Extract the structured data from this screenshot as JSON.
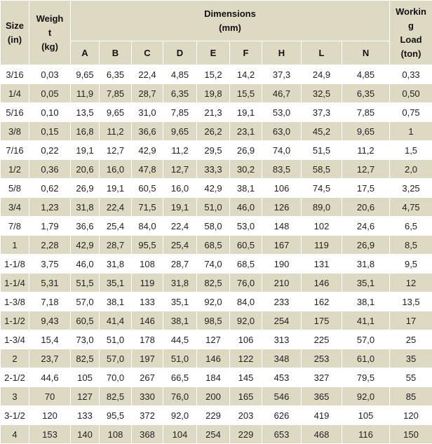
{
  "headers": {
    "size": [
      "Size",
      "(in)"
    ],
    "weight": [
      "Weigh",
      "t",
      "(kg)"
    ],
    "dimensions": [
      "Dimensions",
      "(mm)"
    ],
    "wll": [
      "Workin",
      "g",
      "Load",
      "(ton)"
    ],
    "dims": [
      "A",
      "B",
      "C",
      "D",
      "E",
      "F",
      "H",
      "L",
      "N"
    ]
  },
  "rows": [
    [
      "3/16",
      "0,03",
      "9,65",
      "6,35",
      "22,4",
      "4,85",
      "15,2",
      "14,2",
      "37,3",
      "24,9",
      "4,85",
      "0,33"
    ],
    [
      "1/4",
      "0,05",
      "11,9",
      "7,85",
      "28,7",
      "6,35",
      "19,8",
      "15,5",
      "46,7",
      "32,5",
      "6,35",
      "0,50"
    ],
    [
      "5/16",
      "0,10",
      "13,5",
      "9,65",
      "31,0",
      "7,85",
      "21,3",
      "19,1",
      "53,0",
      "37,3",
      "7,85",
      "0,75"
    ],
    [
      "3/8",
      "0,15",
      "16,8",
      "11,2",
      "36,6",
      "9,65",
      "26,2",
      "23,1",
      "63,0",
      "45,2",
      "9,65",
      "1"
    ],
    [
      "7/16",
      "0,22",
      "19,1",
      "12,7",
      "42,9",
      "11,2",
      "29,5",
      "26,9",
      "74,0",
      "51,5",
      "11,2",
      "1,5"
    ],
    [
      "1/2",
      "0,36",
      "20,6",
      "16,0",
      "47,8",
      "12,7",
      "33,3",
      "30,2",
      "83,5",
      "58,5",
      "12,7",
      "2,0"
    ],
    [
      "5/8",
      "0,62",
      "26,9",
      "19,1",
      "60,5",
      "16,0",
      "42,9",
      "38,1",
      "106",
      "74,5",
      "17,5",
      "3,25"
    ],
    [
      "3/4",
      "1,23",
      "31,8",
      "22,4",
      "71,5",
      "19,1",
      "51,0",
      "46,0",
      "126",
      "89,0",
      "20,6",
      "4,75"
    ],
    [
      "7/8",
      "1,79",
      "36,6",
      "25,4",
      "84,0",
      "22,4",
      "58,0",
      "53,0",
      "148",
      "102",
      "24,6",
      "6,5"
    ],
    [
      "1",
      "2,28",
      "42,9",
      "28,7",
      "95,5",
      "25,4",
      "68,5",
      "60,5",
      "167",
      "119",
      "26,9",
      "8,5"
    ],
    [
      "1-1/8",
      "3,75",
      "46,0",
      "31,8",
      "108",
      "28,7",
      "74,0",
      "68,5",
      "190",
      "131",
      "31,8",
      "9,5"
    ],
    [
      "1-1/4",
      "5,31",
      "51,5",
      "35,1",
      "119",
      "31,8",
      "82,5",
      "76,0",
      "210",
      "146",
      "35,1",
      "12"
    ],
    [
      "1-3/8",
      "7,18",
      "57,0",
      "38,1",
      "133",
      "35,1",
      "92,0",
      "84,0",
      "233",
      "162",
      "38,1",
      "13,5"
    ],
    [
      "1-1/2",
      "9,43",
      "60,5",
      "41,4",
      "146",
      "38,1",
      "98,5",
      "92,0",
      "254",
      "175",
      "41,1",
      "17"
    ],
    [
      "1-3/4",
      "15,4",
      "73,0",
      "51,0",
      "178",
      "44,5",
      "127",
      "106",
      "313",
      "225",
      "57,0",
      "25"
    ],
    [
      "2",
      "23,7",
      "82,5",
      "57,0",
      "197",
      "51,0",
      "146",
      "122",
      "348",
      "253",
      "61,0",
      "35"
    ],
    [
      "2-1/2",
      "44,6",
      "105",
      "70,0",
      "267",
      "66,5",
      "184",
      "145",
      "453",
      "327",
      "79,5",
      "55"
    ],
    [
      "3",
      "70",
      "127",
      "82,5",
      "330",
      "76,0",
      "200",
      "165",
      "546",
      "365",
      "92,0",
      "85"
    ],
    [
      "3-1/2",
      "120",
      "133",
      "95,5",
      "372",
      "92,0",
      "229",
      "203",
      "626",
      "419",
      "105",
      "120"
    ],
    [
      "4",
      "153",
      "140",
      "108",
      "368",
      "104",
      "254",
      "229",
      "653",
      "468",
      "116",
      "150"
    ]
  ]
}
